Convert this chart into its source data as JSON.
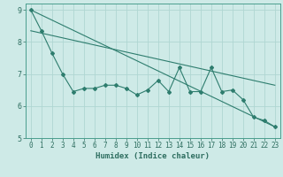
{
  "xlabel": "Humidex (Indice chaleur)",
  "bg_color": "#ceeae7",
  "line_color": "#2e7d6e",
  "grid_color": "#afd6d2",
  "spine_color": "#4a9e8e",
  "tick_color": "#2e6e60",
  "xlim": [
    -0.5,
    23.5
  ],
  "ylim": [
    5.0,
    9.2
  ],
  "yticks": [
    5,
    6,
    7,
    8,
    9
  ],
  "xticks": [
    0,
    1,
    2,
    3,
    4,
    5,
    6,
    7,
    8,
    9,
    10,
    11,
    12,
    13,
    14,
    15,
    16,
    17,
    18,
    19,
    20,
    21,
    22,
    23
  ],
  "line1_x": [
    0,
    1,
    2,
    3,
    4,
    5,
    6,
    7,
    8,
    9,
    10,
    11,
    12,
    13,
    14,
    15,
    16,
    17,
    18,
    19,
    20,
    21,
    22,
    23
  ],
  "line1_y": [
    9.0,
    8.35,
    7.65,
    7.0,
    6.45,
    6.55,
    6.55,
    6.65,
    6.65,
    6.55,
    6.35,
    6.5,
    6.8,
    6.45,
    7.2,
    6.45,
    6.45,
    7.2,
    6.45,
    6.5,
    6.2,
    5.65,
    5.55,
    5.35
  ],
  "line2_x": [
    0,
    23
  ],
  "line2_y": [
    9.0,
    5.35
  ],
  "line3_x": [
    0,
    23
  ],
  "line3_y": [
    8.35,
    6.65
  ],
  "xlabel_fontsize": 6.5,
  "tick_fontsize": 5.5
}
